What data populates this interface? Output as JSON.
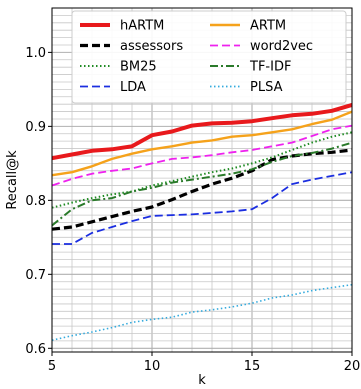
{
  "chart_data": {
    "type": "line",
    "xlabel": "k",
    "ylabel": "Recall@k",
    "xlim": [
      5,
      20
    ],
    "ylim": [
      0.595,
      1.06
    ],
    "xticks": [
      5,
      10,
      15,
      20
    ],
    "yticks": [
      0.6,
      0.7,
      0.8,
      0.9,
      1.0
    ],
    "grid": "major-and-minor",
    "legend_position": "top",
    "legend_columns": 2,
    "x": [
      5,
      6,
      7,
      8,
      9,
      10,
      11,
      12,
      13,
      14,
      15,
      16,
      17,
      18,
      19,
      20
    ],
    "series": [
      {
        "name": "hARTM",
        "color": "#e8191c",
        "style": "solid",
        "width": 4,
        "values": [
          0.857,
          0.862,
          0.867,
          0.869,
          0.873,
          0.888,
          0.893,
          0.901,
          0.904,
          0.905,
          0.907,
          0.911,
          0.915,
          0.917,
          0.921,
          0.929
        ]
      },
      {
        "name": "assessors",
        "color": "#000000",
        "style": "dashed",
        "width": 3.2,
        "values": [
          0.761,
          0.764,
          0.771,
          0.778,
          0.785,
          0.791,
          0.801,
          0.812,
          0.822,
          0.83,
          0.84,
          0.855,
          0.86,
          0.863,
          0.865,
          0.868
        ]
      },
      {
        "name": "BM25",
        "color": "#1e8a22",
        "style": "dotted",
        "width": 2,
        "values": [
          0.79,
          0.797,
          0.803,
          0.808,
          0.812,
          0.82,
          0.826,
          0.832,
          0.838,
          0.843,
          0.85,
          0.858,
          0.868,
          0.878,
          0.886,
          0.892
        ]
      },
      {
        "name": "LDA",
        "color": "#1b2ee0",
        "style": "dashed",
        "width": 1.8,
        "values": [
          0.741,
          0.741,
          0.756,
          0.764,
          0.772,
          0.779,
          0.78,
          0.781,
          0.783,
          0.785,
          0.788,
          0.803,
          0.822,
          0.828,
          0.833,
          0.838
        ]
      },
      {
        "name": "ARTM",
        "color": "#f5a21b",
        "style": "solid",
        "width": 2.4,
        "values": [
          0.834,
          0.838,
          0.846,
          0.856,
          0.863,
          0.869,
          0.873,
          0.878,
          0.881,
          0.886,
          0.888,
          0.892,
          0.896,
          0.903,
          0.909,
          0.92
        ]
      },
      {
        "name": "word2vec",
        "color": "#ee22ee",
        "style": "dashed",
        "width": 1.8,
        "values": [
          0.82,
          0.829,
          0.836,
          0.84,
          0.843,
          0.85,
          0.856,
          0.858,
          0.861,
          0.865,
          0.868,
          0.873,
          0.878,
          0.887,
          0.896,
          0.901
        ]
      },
      {
        "name": "TF-IDF",
        "color": "#2a7a2a",
        "style": "dashdot",
        "width": 2,
        "values": [
          0.766,
          0.788,
          0.8,
          0.803,
          0.812,
          0.817,
          0.824,
          0.828,
          0.832,
          0.836,
          0.842,
          0.852,
          0.86,
          0.864,
          0.87,
          0.878
        ]
      },
      {
        "name": "PLSA",
        "color": "#33aadd",
        "style": "dotted",
        "width": 1.6,
        "values": [
          0.611,
          0.617,
          0.622,
          0.628,
          0.635,
          0.639,
          0.642,
          0.649,
          0.652,
          0.656,
          0.661,
          0.668,
          0.672,
          0.678,
          0.682,
          0.686
        ]
      }
    ]
  }
}
